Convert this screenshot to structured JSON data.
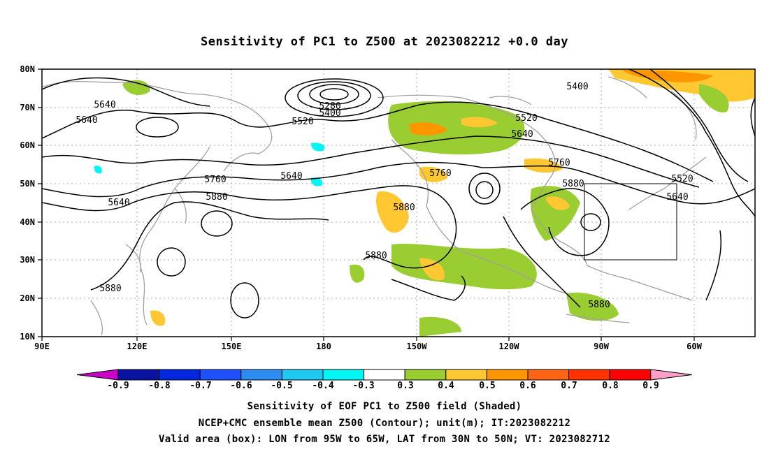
{
  "title": "Sensitivity of PC1 to Z500 at 2023082212 +0.0 day",
  "axes": {
    "lat_labels": [
      "80N",
      "70N",
      "60N",
      "50N",
      "40N",
      "30N",
      "20N",
      "10N"
    ],
    "lon_labels": [
      "90E",
      "120E",
      "150E",
      "180",
      "150W",
      "120W",
      "90W",
      "60W"
    ]
  },
  "contour_labels": [
    "5280",
    "5400",
    "5400",
    "5520",
    "5520",
    "5520",
    "5640",
    "5640",
    "5640",
    "5640",
    "5640",
    "5640",
    "5760",
    "5760",
    "5760",
    "5880",
    "5880",
    "5880",
    "5880",
    "5880",
    "5880"
  ],
  "colorbar": {
    "labels": [
      "-0.9",
      "-0.8",
      "-0.7",
      "-0.6",
      "-0.5",
      "-0.4",
      "-0.3",
      "0.3",
      "0.4",
      "0.5",
      "0.6",
      "0.7",
      "0.8",
      "0.9"
    ],
    "colors": [
      "#c800c8",
      "#0a14a0",
      "#0028dc",
      "#1e50ff",
      "#2d8cf0",
      "#1ec8f0",
      "#00f5f5",
      "#ffffff",
      "#9acd32",
      "#ffc832",
      "#ff9600",
      "#ff6414",
      "#ff3200",
      "#ff0000",
      "#ff9ec8"
    ]
  },
  "valid_box": {
    "lon": "95W to 65W",
    "lat": "30N to 50N"
  },
  "captions": {
    "line1": "Sensitivity of EOF PC1 to Z500 field (Shaded)",
    "line2": "NCEP+CMC ensemble mean Z500 (Contour); unit(m); IT:2023082212",
    "line3": "Valid area (box): LON from 95W to 65W, LAT from 30N to 50N; VT: 2023082712"
  }
}
